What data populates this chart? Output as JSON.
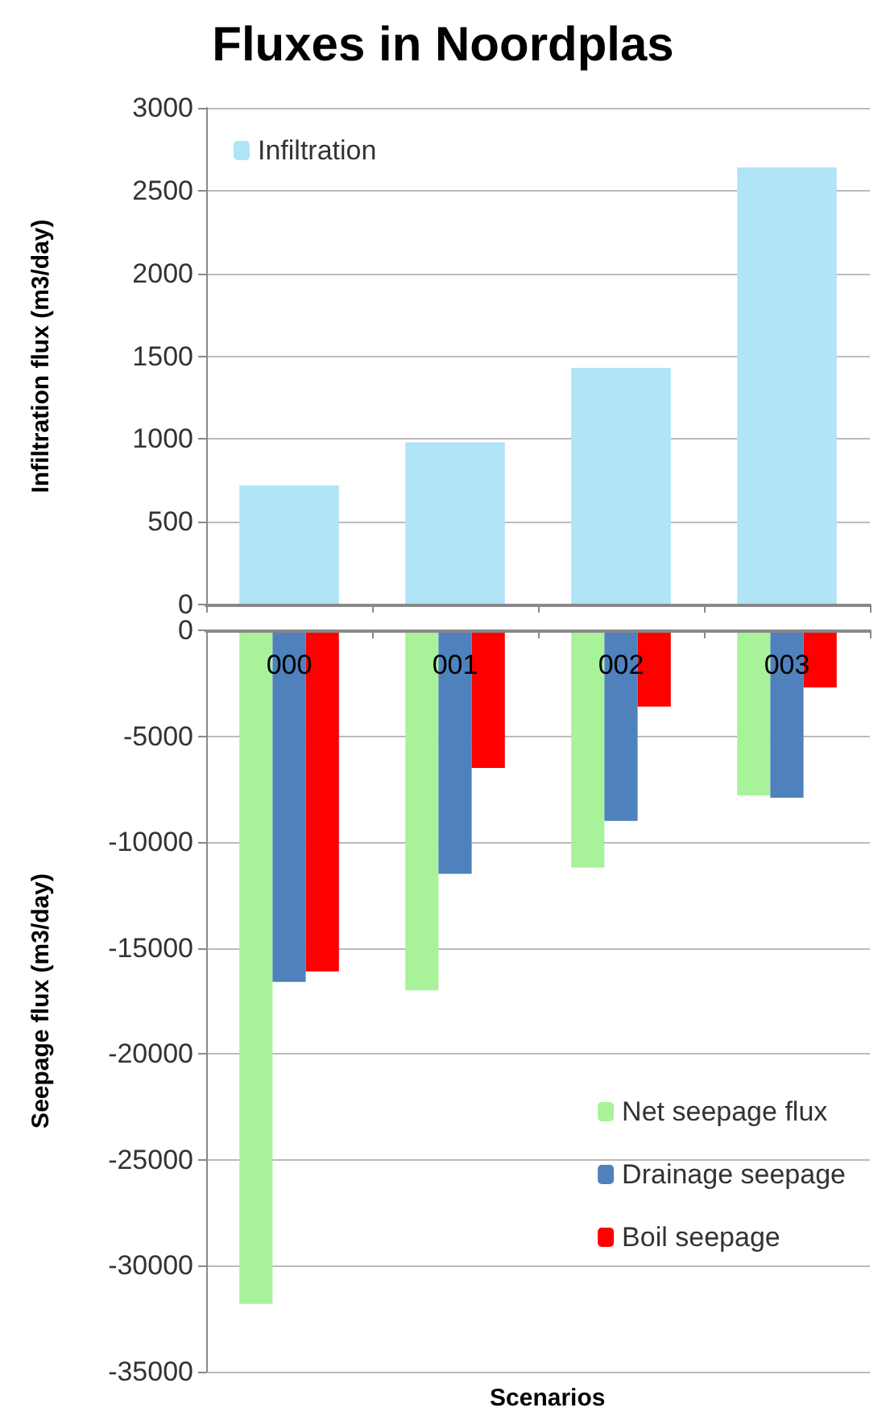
{
  "chart_data": [
    {
      "type": "bar",
      "title": "Fluxes in Noordplas",
      "ylabel": "Infiltration flux (m3/day)",
      "categories": [
        "000",
        "001",
        "002",
        "003"
      ],
      "series": [
        {
          "name": "Infiltration",
          "color": "#b0e4f6",
          "values": [
            720,
            980,
            1430,
            2640
          ]
        }
      ],
      "ylim": [
        0,
        3000
      ],
      "yticks": [
        0,
        500,
        1000,
        1500,
        2000,
        2500,
        3000
      ],
      "grid": "y",
      "legend": "top left",
      "tick_labels": "y"
    },
    {
      "type": "bar",
      "xlabel": "Scenarios",
      "ylabel": "Seepage flux (m3/day)",
      "categories": [
        "000",
        "001",
        "002",
        "003"
      ],
      "series": [
        {
          "name": "Net seepage flux",
          "color": "#a8f29a",
          "values": [
            -31800,
            -17000,
            -11200,
            -7800
          ]
        },
        {
          "name": "Drainage seepage",
          "color": "#4f81bd",
          "values": [
            -16600,
            -11500,
            -9000,
            -7900
          ]
        },
        {
          "name": "Boil seepage",
          "color": "#ff0000",
          "values": [
            -16100,
            -6500,
            -3600,
            -2700
          ]
        }
      ],
      "ylim": [
        -35000,
        0
      ],
      "yticks": [
        -35000,
        -30000,
        -25000,
        -20000,
        -15000,
        -10000,
        -5000,
        0
      ],
      "grid": "y",
      "legend": "bottom right"
    }
  ]
}
